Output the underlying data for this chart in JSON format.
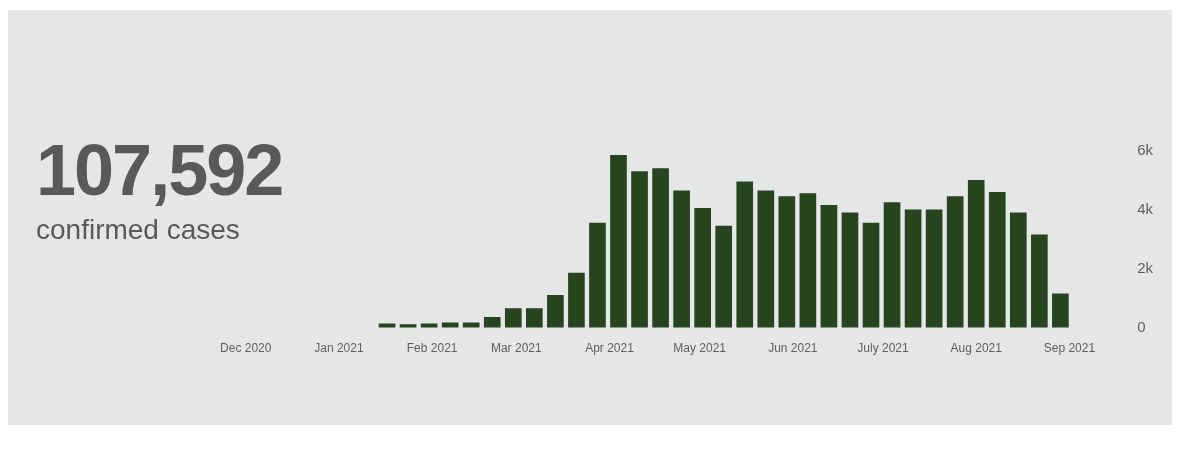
{
  "chart_data": {
    "type": "bar",
    "title": "107,592",
    "subtitle": "confirmed cases",
    "x": [
      "2021-01-17",
      "2021-01-24",
      "2021-01-31",
      "2021-02-07",
      "2021-02-14",
      "2021-02-21",
      "2021-02-28",
      "2021-03-07",
      "2021-03-14",
      "2021-03-21",
      "2021-03-28",
      "2021-04-04",
      "2021-04-11",
      "2021-04-18",
      "2021-04-25",
      "2021-05-02",
      "2021-05-09",
      "2021-05-16",
      "2021-05-23",
      "2021-05-30",
      "2021-06-06",
      "2021-06-13",
      "2021-06-20",
      "2021-06-27",
      "2021-07-04",
      "2021-07-11",
      "2021-07-18",
      "2021-07-25",
      "2021-08-01",
      "2021-08-08",
      "2021-08-15",
      "2021-08-22",
      "2021-08-29"
    ],
    "values": [
      130,
      100,
      130,
      160,
      160,
      350,
      650,
      650,
      1100,
      1850,
      3550,
      5850,
      5300,
      5400,
      4650,
      4050,
      3450,
      4950,
      4650,
      4450,
      4550,
      4150,
      3900,
      3550,
      4250,
      4000,
      4000,
      4450,
      5000,
      4600,
      3900,
      3150,
      1150
    ],
    "color": "#26451f",
    "xlim": [
      "2020-12-01",
      "2021-09-01"
    ],
    "xticks": [
      {
        "value": "2020-12-01",
        "label": "Dec 2020"
      },
      {
        "value": "2021-01-01",
        "label": "Jan 2021"
      },
      {
        "value": "2021-02-01",
        "label": "Feb 2021"
      },
      {
        "value": "2021-03-01",
        "label": "Mar 2021"
      },
      {
        "value": "2021-04-01",
        "label": "Apr 2021"
      },
      {
        "value": "2021-05-01",
        "label": "May 2021"
      },
      {
        "value": "2021-06-01",
        "label": "Jun 2021"
      },
      {
        "value": "2021-07-01",
        "label": "July 2021"
      },
      {
        "value": "2021-08-01",
        "label": "Aug 2021"
      },
      {
        "value": "2021-09-01",
        "label": "Sep 2021"
      }
    ],
    "ylim": [
      0,
      6000
    ],
    "yticks": [
      0,
      {
        "value": 2000,
        "label": "2k"
      },
      {
        "value": 4000,
        "label": "4k"
      },
      {
        "value": 6000,
        "label": "6k"
      }
    ],
    "grid": false,
    "legend": false
  }
}
